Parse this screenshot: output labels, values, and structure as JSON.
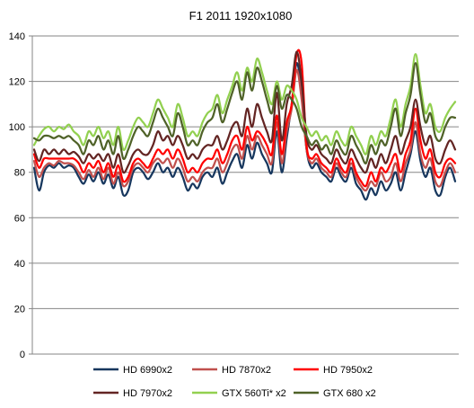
{
  "chart_data": {
    "type": "line",
    "title": "F1 2011 1920x1080",
    "xlabel": "",
    "ylabel": "",
    "ylim": [
      0,
      140
    ],
    "yticks": [
      0,
      20,
      40,
      60,
      80,
      100,
      120,
      140
    ],
    "grid": "horizontal",
    "legend_position": "bottom",
    "series": [
      {
        "name": "HD 6990x2",
        "color": "#17375e",
        "values": [
          82,
          72,
          80,
          83,
          82,
          84,
          82,
          83,
          82,
          78,
          75,
          79,
          76,
          80,
          75,
          79,
          73,
          78,
          70,
          72,
          80,
          82,
          80,
          77,
          80,
          84,
          80,
          82,
          78,
          82,
          78,
          72,
          75,
          73,
          78,
          80,
          78,
          82,
          75,
          80,
          85,
          88,
          82,
          92,
          86,
          93,
          88,
          84,
          80,
          98,
          80,
          95,
          110,
          128,
          115,
          90,
          82,
          84,
          80,
          78,
          76,
          82,
          78,
          76,
          82,
          75,
          72,
          68,
          73,
          70,
          76,
          72,
          75,
          80,
          72,
          80,
          88,
          98,
          85,
          78,
          82,
          72,
          70,
          78,
          82,
          76
        ]
      },
      {
        "name": "HD 7870x2",
        "color": "#c0504d",
        "values": [
          85,
          78,
          82,
          84,
          83,
          85,
          84,
          84,
          83,
          80,
          77,
          81,
          78,
          82,
          77,
          82,
          75,
          80,
          74,
          76,
          82,
          84,
          82,
          80,
          84,
          86,
          84,
          86,
          82,
          86,
          82,
          76,
          78,
          76,
          80,
          82,
          82,
          86,
          80,
          84,
          90,
          92,
          86,
          96,
          90,
          96,
          92,
          88,
          84,
          102,
          84,
          98,
          108,
          125,
          112,
          90,
          84,
          86,
          82,
          80,
          78,
          84,
          80,
          78,
          84,
          78,
          74,
          72,
          76,
          74,
          80,
          76,
          78,
          84,
          76,
          84,
          90,
          102,
          88,
          82,
          86,
          76,
          74,
          80,
          84,
          80
        ]
      },
      {
        "name": "HD 7950x2",
        "color": "#ff0000",
        "values": [
          88,
          82,
          86,
          86,
          86,
          86,
          86,
          86,
          86,
          84,
          80,
          84,
          82,
          85,
          80,
          84,
          78,
          83,
          76,
          78,
          84,
          86,
          84,
          82,
          86,
          90,
          88,
          90,
          86,
          90,
          86,
          80,
          82,
          80,
          84,
          86,
          86,
          90,
          84,
          88,
          94,
          96,
          90,
          100,
          94,
          98,
          96,
          92,
          88,
          105,
          88,
          102,
          110,
          132,
          128,
          92,
          86,
          88,
          84,
          82,
          80,
          86,
          82,
          80,
          86,
          80,
          76,
          74,
          80,
          76,
          82,
          80,
          84,
          88,
          80,
          88,
          94,
          108,
          94,
          86,
          90,
          80,
          78,
          84,
          86,
          84
        ]
      },
      {
        "name": "HD 7970x2",
        "color": "#632523",
        "values": [
          90,
          85,
          90,
          88,
          90,
          88,
          90,
          88,
          89,
          87,
          84,
          88,
          86,
          88,
          85,
          88,
          82,
          88,
          80,
          83,
          88,
          90,
          88,
          88,
          92,
          98,
          94,
          96,
          92,
          96,
          92,
          86,
          88,
          86,
          90,
          92,
          92,
          96,
          90,
          94,
          100,
          102,
          96,
          108,
          100,
          110,
          104,
          98,
          94,
          115,
          94,
          110,
          118,
          133,
          120,
          96,
          90,
          92,
          88,
          86,
          84,
          90,
          86,
          84,
          90,
          86,
          82,
          80,
          86,
          82,
          88,
          84,
          90,
          96,
          88,
          94,
          100,
          112,
          100,
          92,
          96,
          86,
          84,
          90,
          94,
          90
        ]
      },
      {
        "name": "GTX 560Ti* x2",
        "color": "#92d050",
        "values": [
          92,
          96,
          99,
          100,
          98,
          100,
          99,
          101,
          98,
          96,
          92,
          98,
          96,
          100,
          95,
          98,
          92,
          100,
          90,
          94,
          100,
          104,
          102,
          100,
          106,
          112,
          108,
          104,
          100,
          110,
          104,
          96,
          98,
          96,
          102,
          106,
          108,
          114,
          106,
          112,
          118,
          124,
          116,
          126,
          120,
          130,
          124,
          116,
          110,
          120,
          112,
          118,
          116,
          112,
          104,
          100,
          96,
          98,
          94,
          96,
          92,
          98,
          94,
          92,
          100,
          96,
          92,
          88,
          96,
          92,
          98,
          96,
          104,
          112,
          100,
          110,
          118,
          132,
          118,
          106,
          110,
          100,
          98,
          104,
          108,
          111
        ]
      },
      {
        "name": "GTX 680 x2",
        "color": "#4f6228",
        "values": [
          95,
          94,
          96,
          96,
          95,
          96,
          95,
          96,
          94,
          92,
          88,
          94,
          92,
          96,
          90,
          94,
          88,
          96,
          86,
          90,
          96,
          100,
          98,
          96,
          102,
          108,
          104,
          100,
          96,
          106,
          100,
          92,
          94,
          92,
          98,
          102,
          104,
          110,
          102,
          108,
          115,
          120,
          112,
          124,
          116,
          126,
          120,
          112,
          106,
          118,
          108,
          114,
          112,
          108,
          100,
          96,
          92,
          94,
          90,
          92,
          88,
          94,
          90,
          88,
          96,
          92,
          88,
          84,
          92,
          88,
          94,
          92,
          100,
          108,
          96,
          106,
          114,
          128,
          114,
          102,
          106,
          96,
          94,
          100,
          104,
          104
        ]
      }
    ]
  }
}
